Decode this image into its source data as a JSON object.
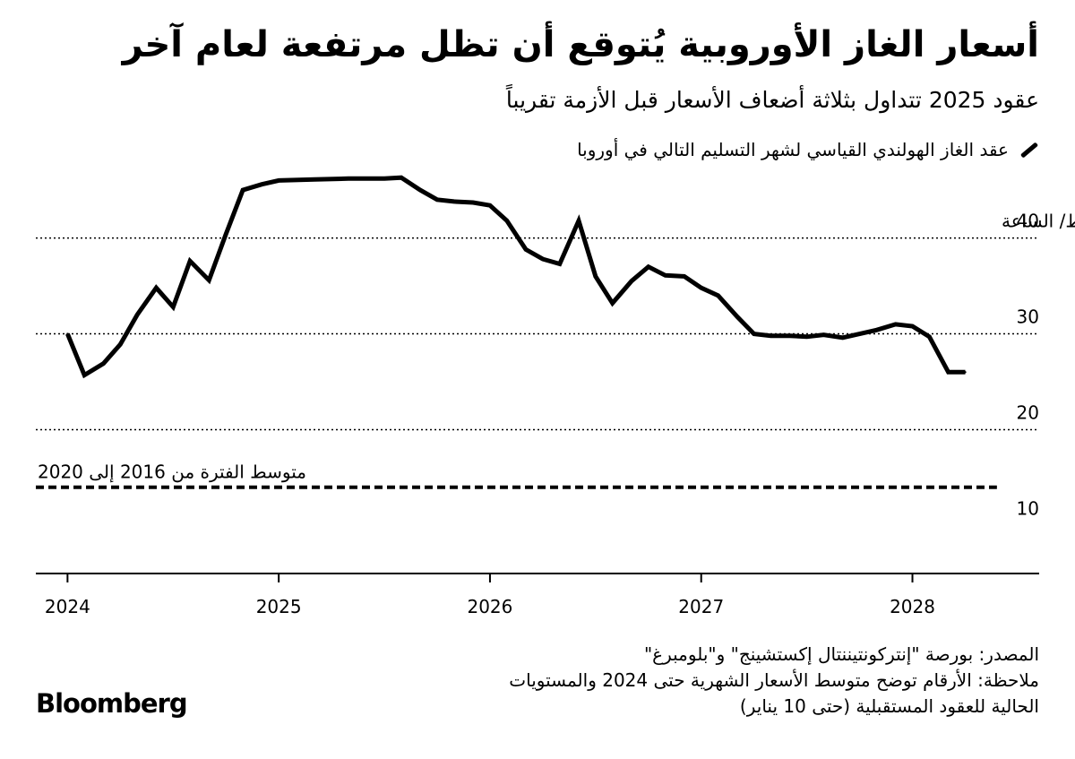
{
  "title": "أسعار الغاز الأوروبية يُتوقع أن تظل مرتفعة لعام آخر",
  "subtitle": "عقود 2025 تتداول بثلاثة أضعاف الأسعار قبل الأزمة تقريباً",
  "legend_label": "عقد الغاز الهولندي القياسي لشهر التسليم التالي في أوروبا",
  "notes": {
    "source": "المصدر: بورصة \"إنتركونتيننتال إكستشينج\" و\"بلومبرغ\"",
    "note_line1": "ملاحظة: الأرقام توضح متوسط الأسعار الشهرية حتى 2024 والمستويات",
    "note_line2": "الحالية للعقود المستقبلية (حتى 10 يناير)"
  },
  "logo": "Bloomberg",
  "colors": {
    "line": "#000000",
    "background": "#ffffff"
  },
  "chart_data": {
    "type": "line",
    "ylim": [
      5,
      48
    ],
    "xlim": [
      2023.85,
      2028.6
    ],
    "y_gridlines": [
      20,
      30,
      40
    ],
    "y_ticks": [
      {
        "value": 10,
        "label": "10"
      },
      {
        "value": 20,
        "label": "20"
      },
      {
        "value": 30,
        "label": "30"
      },
      {
        "value": 40,
        "label": "40"
      }
    ],
    "y_unit_label": "يورو لكل ميغاواط/ الساعة",
    "x_ticks": [
      {
        "value": 2024,
        "label": "2024"
      },
      {
        "value": 2025,
        "label": "2025"
      },
      {
        "value": 2026,
        "label": "2026"
      },
      {
        "value": 2027,
        "label": "2027"
      },
      {
        "value": 2028,
        "label": "2028"
      }
    ],
    "reference_line": {
      "value": 14.0,
      "from": 2023.85,
      "to": 2028.4,
      "label": "متوسط الفترة من 2016 إلى 2020"
    },
    "series": [
      {
        "x": [
          2024.0,
          2024.08,
          2024.17,
          2024.25,
          2024.33,
          2024.42,
          2024.5,
          2024.58,
          2024.67,
          2024.75,
          2024.83,
          2024.92,
          2025.0,
          2025.17,
          2025.33,
          2025.5,
          2025.58,
          2025.67,
          2025.75,
          2025.83,
          2025.92,
          2026.0,
          2026.08,
          2026.17,
          2026.25,
          2026.33,
          2026.42,
          2026.5,
          2026.58,
          2026.67,
          2026.75,
          2026.83,
          2026.92,
          2027.0,
          2027.08,
          2027.17,
          2027.25,
          2027.33,
          2027.42,
          2027.5,
          2027.58,
          2027.67,
          2027.75,
          2027.83,
          2027.92,
          2028.0,
          2028.08,
          2028.17,
          2028.25
        ],
        "y": [
          30.0,
          25.7,
          26.9,
          28.9,
          32.0,
          34.8,
          32.8,
          37.6,
          35.6,
          40.4,
          45.0,
          45.6,
          46.0,
          46.1,
          46.2,
          46.2,
          46.3,
          45.0,
          44.0,
          43.8,
          43.7,
          43.4,
          41.8,
          38.8,
          37.8,
          37.3,
          41.8,
          36.0,
          33.2,
          35.5,
          37.0,
          36.1,
          36.0,
          34.8,
          34.0,
          31.8,
          30.0,
          29.8,
          29.8,
          29.7,
          29.9,
          29.6,
          30.0,
          30.4,
          31.0,
          30.8,
          29.7,
          26.0,
          26.0
        ]
      }
    ]
  }
}
